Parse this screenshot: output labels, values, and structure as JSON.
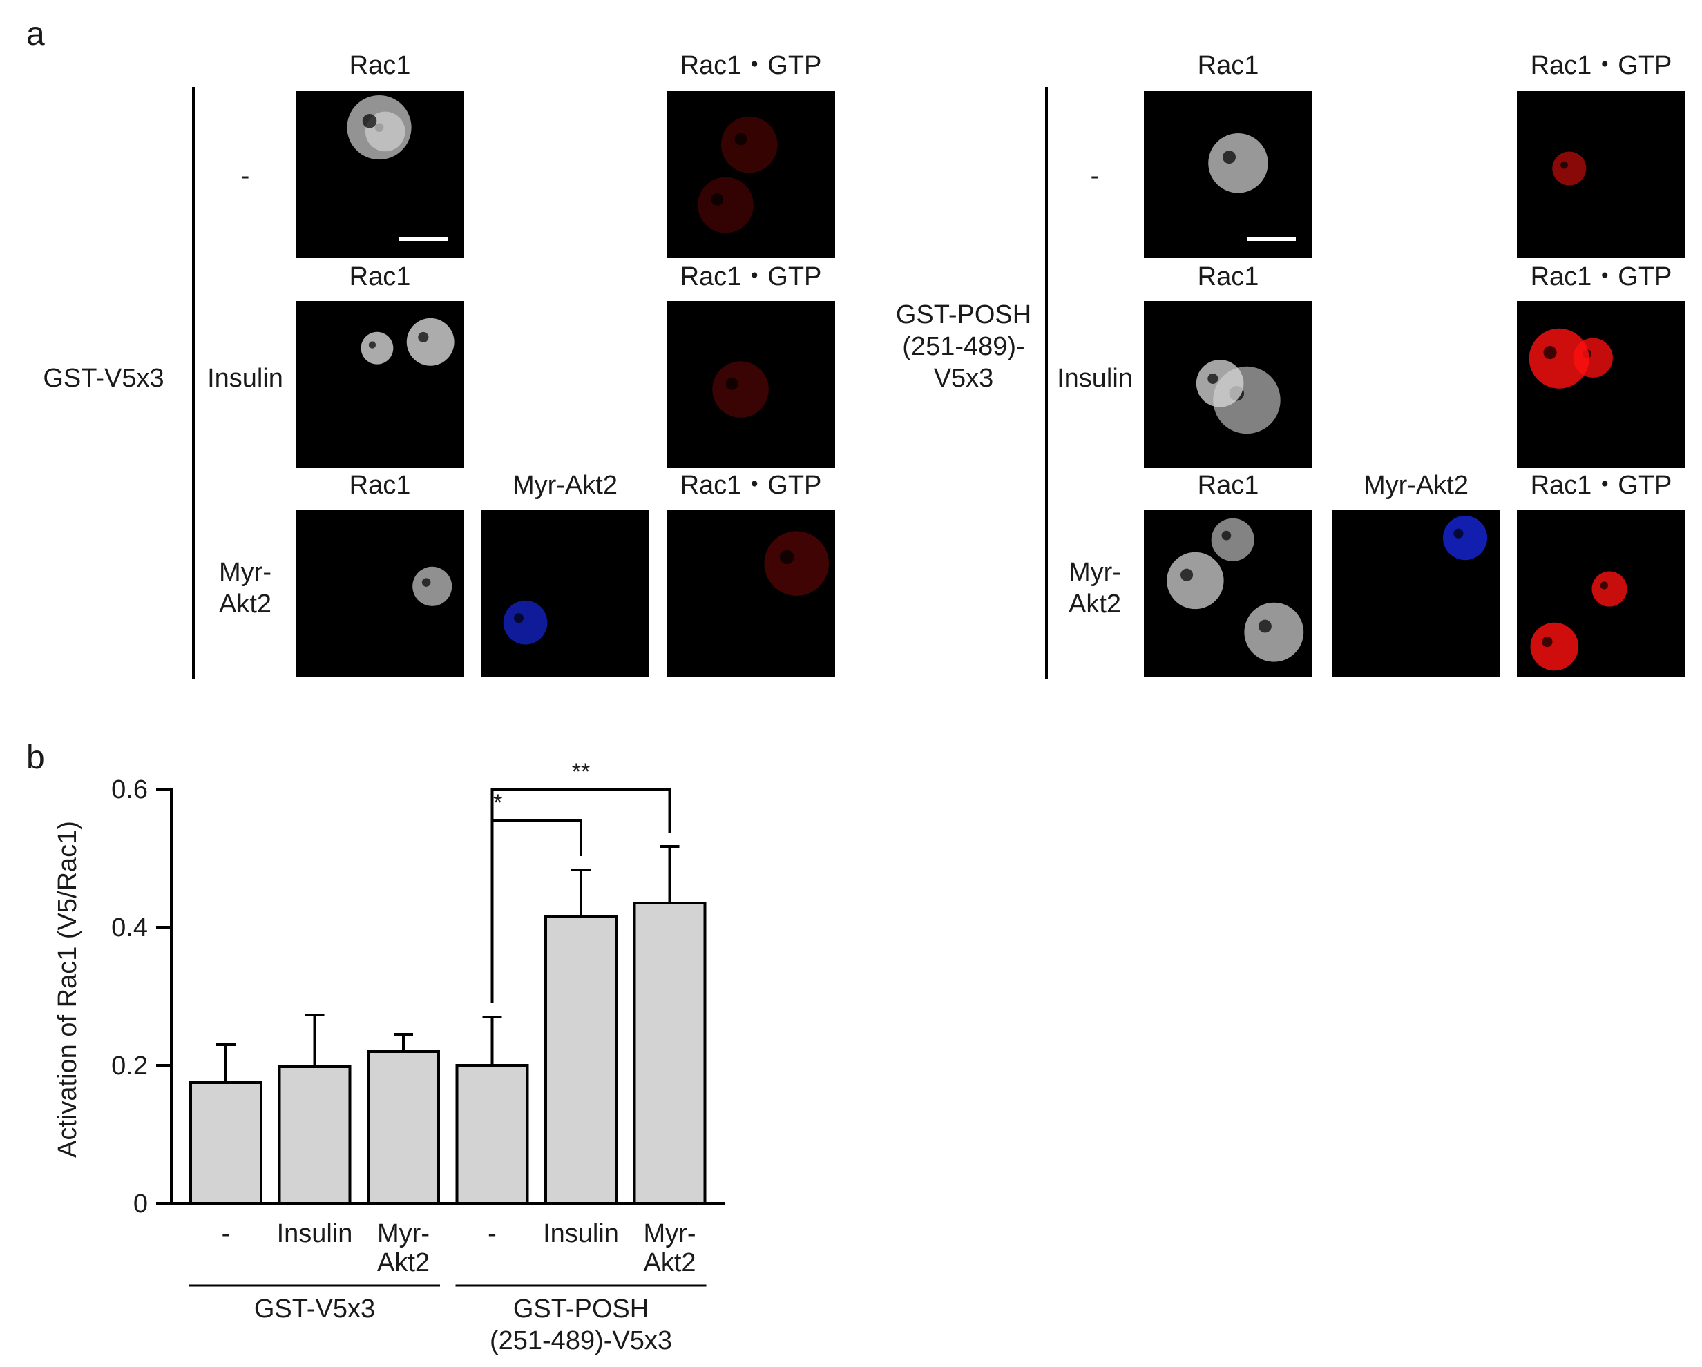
{
  "panel_a": {
    "letter": "a",
    "groups": [
      {
        "label": "GST-V5x3",
        "rows": [
          {
            "label": "-",
            "col1": "Rac1",
            "col3": "Rac1・GTP"
          },
          {
            "label": "Insulin",
            "col1": "Rac1",
            "col3": "Rac1・GTP"
          },
          {
            "label": "Myr-\nAkt2",
            "col1": "Rac1",
            "col2": "Myr-Akt2",
            "col3": "Rac1・GTP"
          }
        ]
      },
      {
        "label": "GST-POSH\n(251-489)-\nV5x3",
        "rows": [
          {
            "label": "-",
            "col1": "Rac1",
            "col3": "Rac1・GTP"
          },
          {
            "label": "Insulin",
            "col1": "Rac1",
            "col3": "Rac1・GTP"
          },
          {
            "label": "Myr-\nAkt2",
            "col1": "Rac1",
            "col2": "Myr-Akt2",
            "col3": "Rac1・GTP"
          }
        ]
      }
    ],
    "channel_colors": {
      "rac1": "#d8d8d8",
      "myr_akt2": "#1a2cff",
      "rac1_gtp": "#ff1010"
    }
  },
  "panel_b": {
    "letter": "b",
    "chart_data": {
      "type": "bar",
      "ylabel": "Activation of Rac1 (V5/Rac1)",
      "ylim": [
        0,
        0.6
      ],
      "yticks": [
        "0",
        "0.2",
        "0.4",
        "0.6"
      ],
      "ytick_values": [
        0,
        0.2,
        0.4,
        0.6
      ],
      "categories": [
        "-",
        "Insulin",
        "Myr-\nAkt2",
        "-",
        "Insulin",
        "Myr-\nAkt2"
      ],
      "values": [
        0.175,
        0.198,
        0.22,
        0.2,
        0.415,
        0.435
      ],
      "errors": [
        0.055,
        0.075,
        0.025,
        0.07,
        0.068,
        0.082
      ],
      "groups": [
        {
          "label": "GST-V5x3",
          "categories": [
            0,
            1,
            2
          ]
        },
        {
          "label": "GST-POSH\n(251-489)-V5x3",
          "categories": [
            3,
            4,
            5
          ]
        }
      ],
      "significance": [
        {
          "from": 3,
          "to": 4,
          "label": "*"
        },
        {
          "from": 3,
          "to": 5,
          "label": "**"
        }
      ],
      "bar_color": "#d3d3d3",
      "edge_color": "#000000",
      "grid": false
    }
  }
}
